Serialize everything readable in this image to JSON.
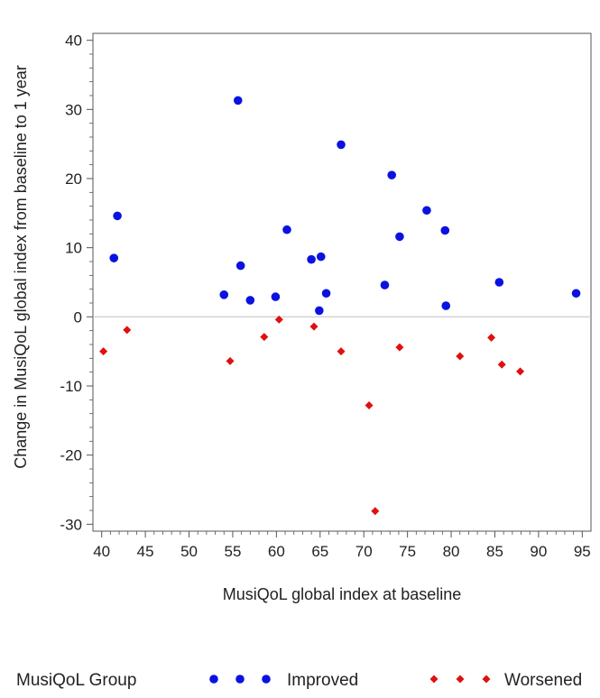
{
  "chart_data": {
    "type": "scatter",
    "title": "",
    "xlabel": "MusiQoL global index at baseline",
    "ylabel": "Change in MusiQoL global index from baseline to 1 year",
    "xlim": [
      39,
      96
    ],
    "ylim": [
      -31,
      41
    ],
    "x_ticks": [
      40,
      45,
      50,
      55,
      60,
      65,
      70,
      75,
      80,
      85,
      90,
      95
    ],
    "y_ticks": [
      -30,
      -20,
      -10,
      0,
      10,
      20,
      30,
      40
    ],
    "reference_line_y": 0,
    "grid": false,
    "legend": {
      "title": "MusiQoL Group",
      "position": "bottom"
    },
    "colors": {
      "improved": "#0b12e0",
      "worsened": "#e01010",
      "reference": "#c8c8c8",
      "axis": "#555555"
    },
    "series": [
      {
        "name": "Improved",
        "marker": "circle",
        "points": [
          [
            41.4,
            8.5
          ],
          [
            41.8,
            14.6
          ],
          [
            54.0,
            3.2
          ],
          [
            55.6,
            31.3
          ],
          [
            55.9,
            7.4
          ],
          [
            57.0,
            2.4
          ],
          [
            59.9,
            2.9
          ],
          [
            61.2,
            12.6
          ],
          [
            64.0,
            8.3
          ],
          [
            64.9,
            0.9
          ],
          [
            65.1,
            8.7
          ],
          [
            65.7,
            3.4
          ],
          [
            67.4,
            24.9
          ],
          [
            72.4,
            4.6
          ],
          [
            73.2,
            20.5
          ],
          [
            74.1,
            11.6
          ],
          [
            77.2,
            15.4
          ],
          [
            79.3,
            12.5
          ],
          [
            79.4,
            1.6
          ],
          [
            85.5,
            5.0
          ],
          [
            94.3,
            3.4
          ]
        ]
      },
      {
        "name": "Worsened",
        "marker": "diamond",
        "points": [
          [
            40.2,
            -5.0
          ],
          [
            42.9,
            -1.9
          ],
          [
            54.7,
            -6.4
          ],
          [
            58.6,
            -2.9
          ],
          [
            60.3,
            -0.4
          ],
          [
            64.3,
            -1.4
          ],
          [
            67.4,
            -5.0
          ],
          [
            70.6,
            -12.8
          ],
          [
            71.3,
            -28.1
          ],
          [
            74.1,
            -4.4
          ],
          [
            81.0,
            -5.7
          ],
          [
            84.6,
            -3.0
          ],
          [
            85.8,
            -6.9
          ],
          [
            87.9,
            -7.9
          ]
        ]
      }
    ]
  }
}
